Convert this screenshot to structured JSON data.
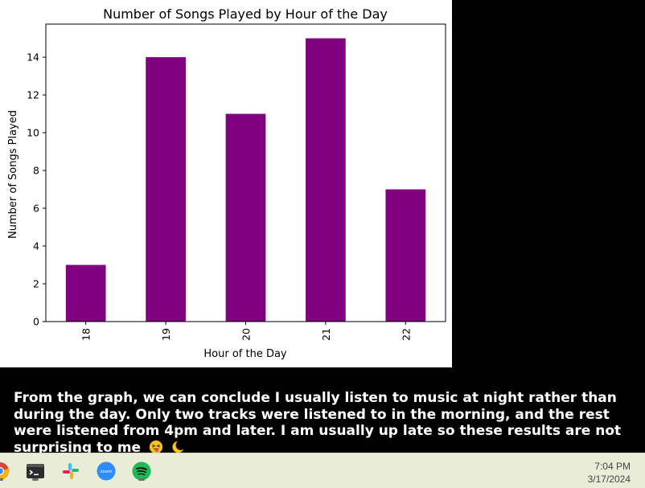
{
  "chart_data": {
    "type": "bar",
    "title": "Number of Songs Played by Hour of the Day",
    "xlabel": "Hour of the Day",
    "ylabel": "Number of Songs Played",
    "categories": [
      "18",
      "19",
      "20",
      "21",
      "22"
    ],
    "values": [
      3,
      14,
      11,
      15,
      7
    ],
    "ylim": [
      0,
      15.75
    ],
    "yticks": [
      "0",
      "2",
      "4",
      "6",
      "8",
      "10",
      "12",
      "14"
    ],
    "bar_color": "#800080",
    "grid": false,
    "legend": "none"
  },
  "conclusion": {
    "text": "From the graph, we can conclude I usually listen to music at night rather than during the day. Only two tracks were listened to in the morning, and the rest were listened from 4pm and later. I am usually up late so these results are not surprising to me",
    "emojis": [
      "squinting-tongue-face",
      "crescent-moon"
    ]
  },
  "taskbar": {
    "apps": [
      {
        "name": "chrome",
        "icon": "chrome-icon",
        "running": true
      },
      {
        "name": "terminal",
        "icon": "terminal-icon",
        "running": true
      },
      {
        "name": "slack",
        "icon": "slack-icon",
        "running": false
      },
      {
        "name": "zoom",
        "icon": "zoom-icon",
        "label": "zoom",
        "running": false
      },
      {
        "name": "spotify",
        "icon": "spotify-icon",
        "running": true
      }
    ],
    "time": "7:04 PM",
    "date": "3/17/2024",
    "colors": {
      "background": "#e9ecd6",
      "zoom": "#2d8cff",
      "spotify": "#1db954"
    }
  }
}
